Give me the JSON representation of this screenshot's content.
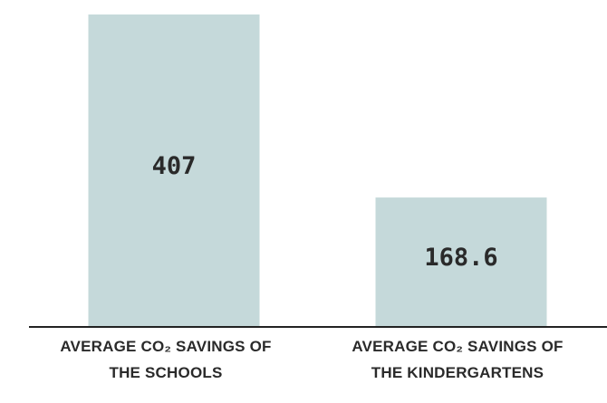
{
  "chart_data": {
    "type": "bar",
    "categories": [
      "AVERAGE CO₂ SAVINGS OF THE SCHOOLS",
      "AVERAGE CO₂ SAVINGS OF THE KINDERGARTENS"
    ],
    "values": [
      407,
      168.6
    ],
    "color": "#c5d9da"
  }
}
